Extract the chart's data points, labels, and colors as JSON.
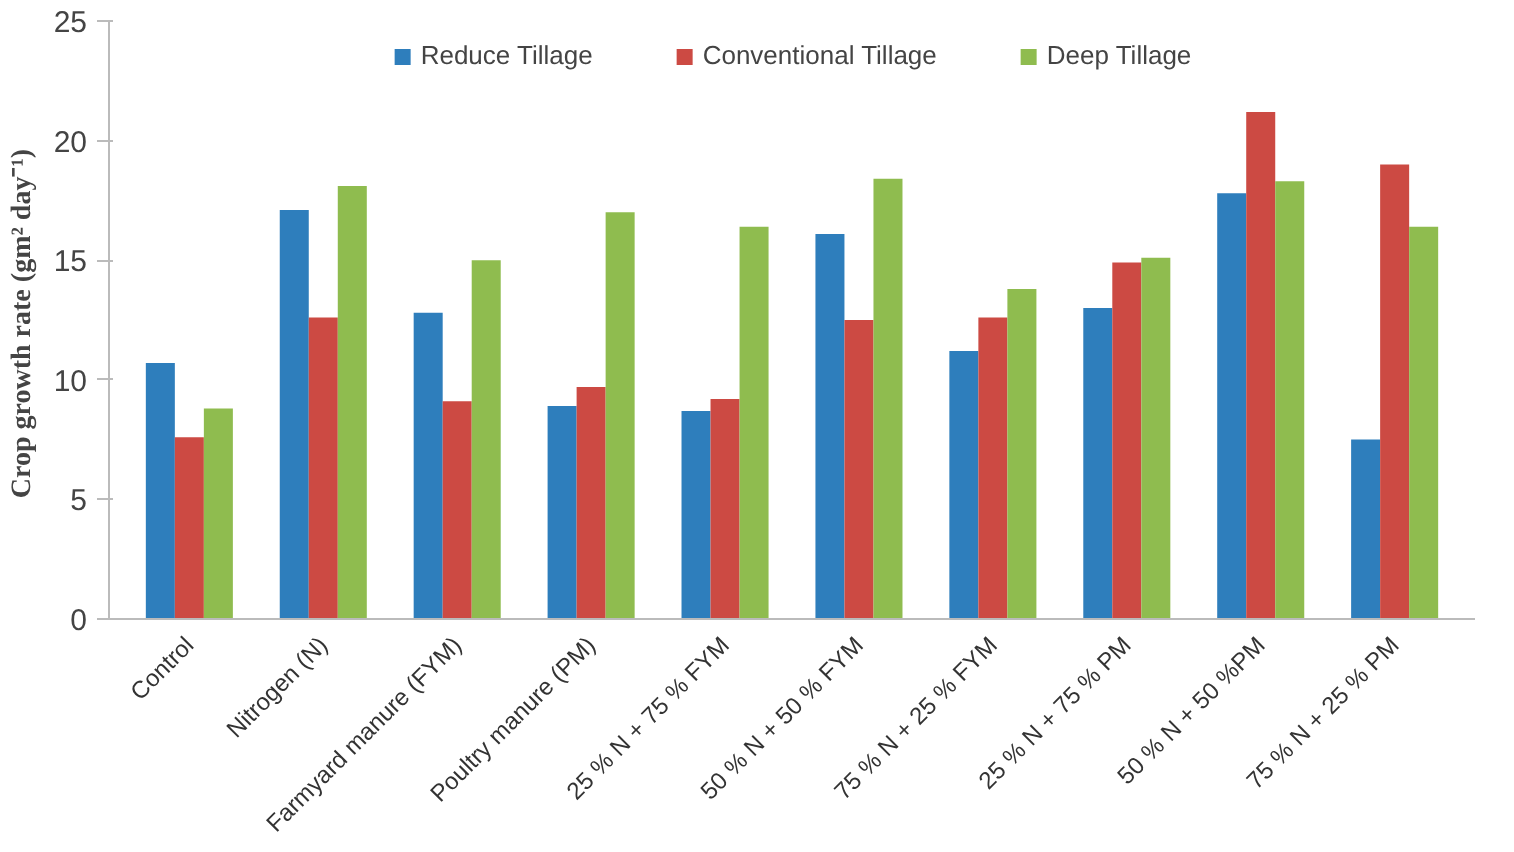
{
  "chart_data": {
    "type": "bar",
    "ylabel": "Crop growth  rate (gm² day⁻¹)",
    "categories": [
      "Control",
      "Nitrogen (N)",
      "Farmyard manure (FYM)",
      "Poultry manure (PM)",
      "25 % N + 75 % FYM",
      "50 % N + 50 % FYM",
      "75 % N + 25 % FYM",
      "25 % N + 75 % PM",
      "50 % N + 50 %PM",
      "75 % N + 25 % PM"
    ],
    "series": [
      {
        "name": "Reduce Tillage",
        "color": "#2e7ebc",
        "values": [
          10.7,
          17.1,
          12.8,
          8.9,
          8.7,
          16.1,
          11.2,
          13.0,
          17.8,
          7.5
        ]
      },
      {
        "name": "Conventional Tillage",
        "color": "#cc4a43",
        "values": [
          7.6,
          12.6,
          9.1,
          9.7,
          9.2,
          12.5,
          12.6,
          14.9,
          21.2,
          19.0
        ]
      },
      {
        "name": "Deep Tillage",
        "color": "#8fbc4f",
        "values": [
          8.8,
          18.1,
          15.0,
          17.0,
          16.4,
          18.4,
          13.8,
          15.1,
          18.3,
          16.4
        ]
      }
    ],
    "ylim": [
      0,
      25
    ],
    "yticks": [
      0,
      5,
      10,
      15,
      20,
      25
    ],
    "grid": false,
    "legend": "top"
  }
}
